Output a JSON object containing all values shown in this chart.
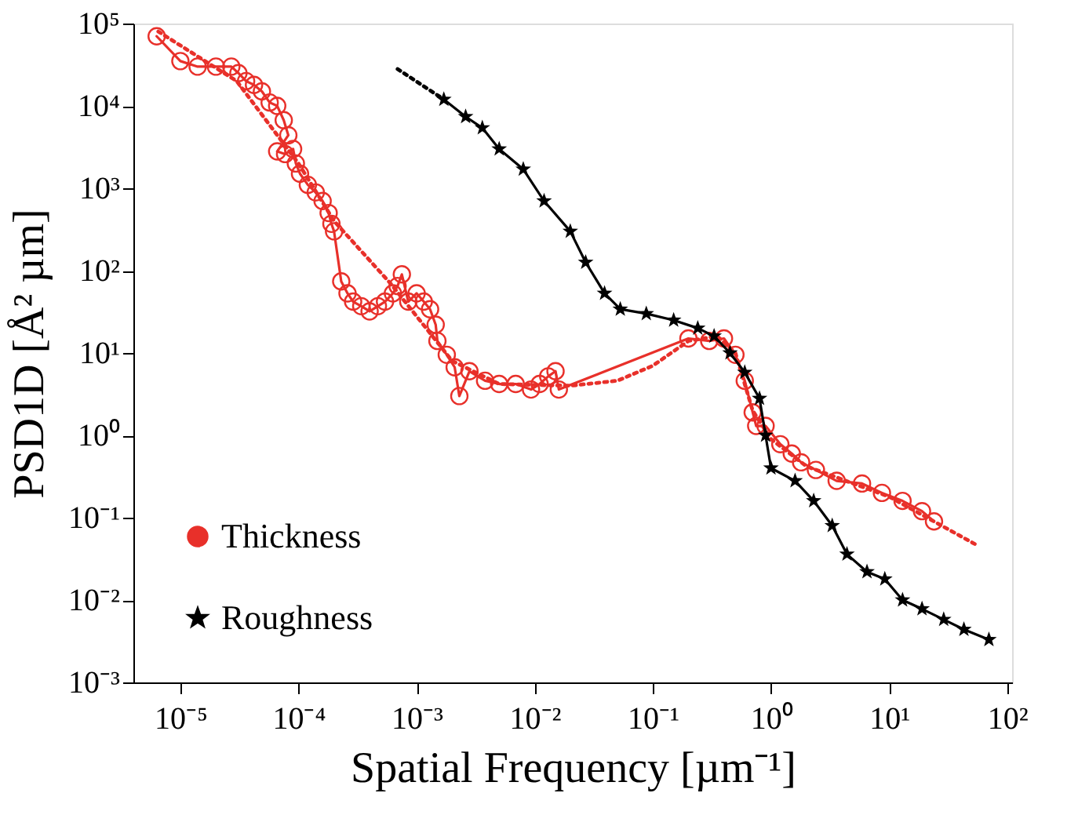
{
  "chart_data": {
    "type": "line",
    "xlabel": "Spatial Frequency [µm⁻¹]",
    "ylabel": "PSD1D [Å² µm]",
    "log": "xy",
    "grid": false,
    "legend": "bottom left",
    "xlim": [
      4e-06,
      110
    ],
    "ylim": [
      0.001,
      100000
    ],
    "xticks": [
      {
        "value": 1e-05,
        "label": "10⁻⁵"
      },
      {
        "value": 0.0001,
        "label": "10⁻⁴"
      },
      {
        "value": 0.001,
        "label": "10⁻³"
      },
      {
        "value": 0.01,
        "label": "10⁻²"
      },
      {
        "value": 0.1,
        "label": "10⁻¹"
      },
      {
        "value": 1,
        "label": "10⁰"
      },
      {
        "value": 10,
        "label": "10¹"
      },
      {
        "value": 100,
        "label": "10²"
      }
    ],
    "yticks": [
      {
        "value": 0.001,
        "label": "10⁻³"
      },
      {
        "value": 0.01,
        "label": "10⁻²"
      },
      {
        "value": 0.1,
        "label": "10⁻¹"
      },
      {
        "value": 1,
        "label": "10⁰"
      },
      {
        "value": 10,
        "label": "10¹"
      },
      {
        "value": 100,
        "label": "10²"
      },
      {
        "value": 1000,
        "label": "10³"
      },
      {
        "value": 10000,
        "label": "10⁴"
      },
      {
        "value": 100000,
        "label": "10⁵"
      }
    ],
    "series": [
      {
        "name": "Thickness",
        "color": "#e8302a",
        "marker": "circle",
        "line_style": "solid",
        "x": [
          6.3e-06,
          1e-05,
          1.4e-05,
          2e-05,
          2.7e-05,
          3.1e-05,
          3.6e-05,
          4.2e-05,
          4.9e-05,
          5.7e-05,
          6.6e-05,
          7.5e-05,
          8.2e-05,
          6.6e-05,
          7.7e-05,
          9e-05,
          9.5e-05,
          0.000103,
          0.00012,
          0.00014,
          0.00016,
          0.00018,
          0.00019,
          0.0002,
          0.00023,
          0.00026,
          0.00029,
          0.00034,
          0.0004,
          0.00047,
          0.00054,
          0.00063,
          0.00069,
          0.00075,
          0.00085,
          0.001,
          0.00115,
          0.0013,
          0.00145,
          0.0015,
          0.0018,
          0.0021,
          0.0023,
          0.0028,
          0.0038,
          0.005,
          0.0069,
          0.0093,
          0.011,
          0.013,
          0.015,
          0.016,
          0.2,
          0.3,
          0.4,
          0.5,
          0.6,
          0.7,
          0.75,
          0.9,
          1.2,
          1.5,
          1.8,
          2.4,
          3.6,
          5.9,
          8.7,
          13,
          19,
          24
        ],
        "values": [
          70000,
          35000,
          30000,
          30000,
          30000,
          25000,
          20000,
          18000,
          15000,
          11000,
          10000,
          6700,
          4400,
          2800,
          2600,
          3000,
          2000,
          1500,
          1100,
          890,
          700,
          500,
          370,
          300,
          74,
          53,
          42,
          37,
          32,
          37,
          42,
          53,
          65,
          90,
          42,
          53,
          42,
          34,
          22,
          14,
          9.5,
          6.7,
          3,
          6,
          4.6,
          4.2,
          4.2,
          3.6,
          4.2,
          5.2,
          6,
          3.6,
          15,
          14,
          15,
          9.5,
          4.6,
          1.9,
          1.3,
          1.3,
          0.78,
          0.6,
          0.47,
          0.38,
          0.28,
          0.26,
          0.2,
          0.16,
          0.12,
          0.09
        ]
      },
      {
        "color": "#e8302a",
        "marker": "none",
        "line_style": "dotted",
        "x": [
          6.5e-06,
          3e-05,
          0.0001,
          0.0002,
          0.0006,
          0.002,
          0.005,
          0.02,
          0.05,
          0.1,
          0.2,
          0.35,
          0.5,
          0.7,
          1,
          2,
          10,
          56
        ],
        "values": [
          80000,
          20000,
          2000,
          400,
          70,
          8,
          4.2,
          4,
          4.6,
          7,
          14,
          16,
          10,
          2,
          0.9,
          0.42,
          0.18,
          0.046
        ]
      },
      {
        "name": "Roughness",
        "color": "#000000",
        "marker": "star",
        "line_style": "solid",
        "x": [
          0.0017,
          0.0026,
          0.0036,
          0.005,
          0.008,
          0.012,
          0.02,
          0.027,
          0.039,
          0.053,
          0.088,
          0.15,
          0.24,
          0.33,
          0.45,
          0.6,
          0.8,
          0.9,
          1.0,
          1.6,
          2.3,
          3.3,
          4.4,
          6.5,
          9.2,
          13,
          19,
          29,
          43,
          70
        ],
        "values": [
          12000,
          7400,
          5400,
          3000,
          1700,
          700,
          300,
          126,
          53,
          34,
          30,
          25,
          20,
          16,
          10,
          5.8,
          2.8,
          1.0,
          0.4,
          0.28,
          0.16,
          0.08,
          0.036,
          0.022,
          0.018,
          0.01,
          0.0078,
          0.0058,
          0.0044,
          0.0033
        ]
      },
      {
        "color": "#000000",
        "marker": "none",
        "line_style": "dotted",
        "x": [
          0.00069,
          0.0017
        ],
        "values": [
          28000,
          12000
        ]
      }
    ]
  }
}
